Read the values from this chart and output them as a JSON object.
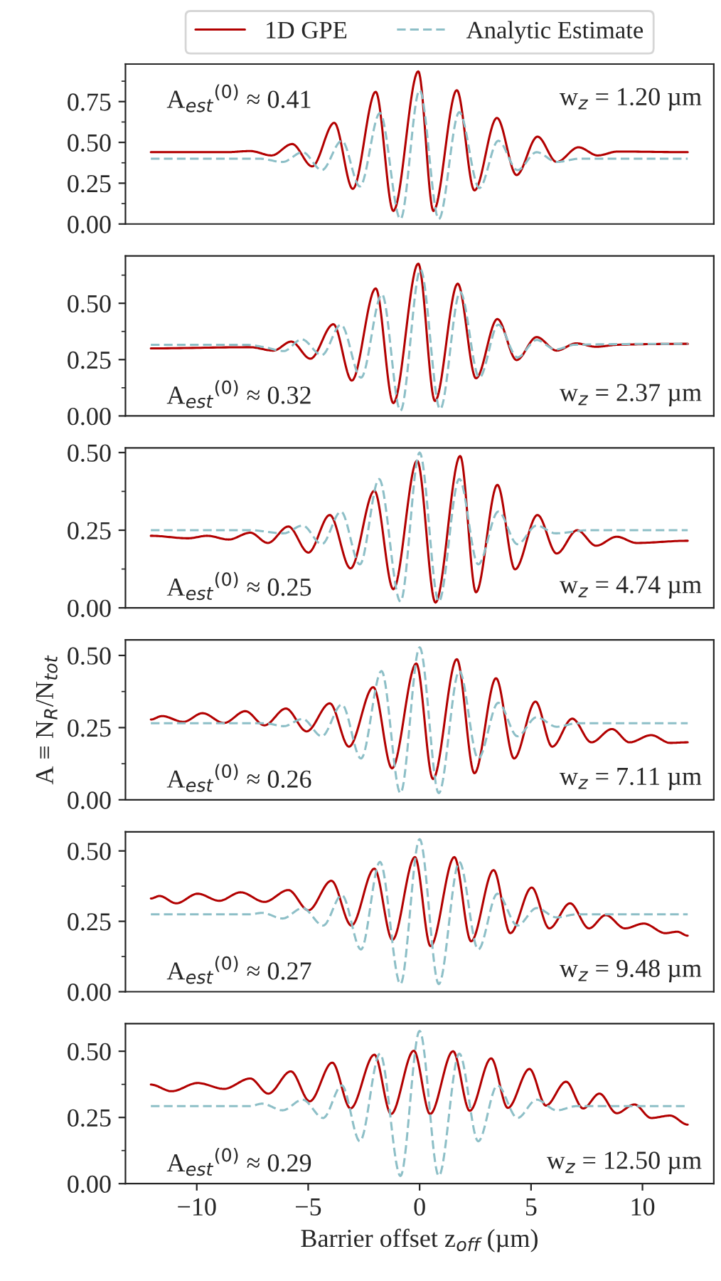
{
  "chart_data": [
    {
      "type": "line",
      "legend": "top",
      "tick_labels": "y",
      "xlim": [
        -13.2,
        13.2
      ],
      "xticks": [
        -10,
        -5,
        0,
        5,
        10
      ],
      "ylim": [
        0,
        0.98
      ],
      "yticks": [
        {
          "value": 0,
          "label": "0.00"
        },
        {
          "value": 0.25,
          "label": "0.25"
        },
        {
          "value": 0.5,
          "label": "0.50"
        },
        {
          "value": 0.75,
          "label": "0.75"
        }
      ],
      "annotations": [
        "A$_{est}$$^{(0)}$ ≈ 0.41",
        "w$_{z}$ = 1.20 µm"
      ],
      "series": [
        {
          "name": "1D GPE",
          "color": "#b20000",
          "line_style": "solid",
          "x": [
            -12.06,
            -8.67,
            -7.6,
            -6.64,
            -5.72,
            -4.82,
            -3.83,
            -3.0,
            -1.97,
            -1.18,
            -0.06,
            0.62,
            1.67,
            2.46,
            3.47,
            4.35,
            5.29,
            6.15,
            7.13,
            7.99,
            8.89,
            12.03
          ],
          "values": [
            0.44,
            0.44,
            0.447,
            0.42,
            0.49,
            0.353,
            0.62,
            0.215,
            0.81,
            0.08,
            0.935,
            0.08,
            0.82,
            0.206,
            0.65,
            0.3,
            0.535,
            0.38,
            0.47,
            0.42,
            0.444,
            0.44
          ]
        },
        {
          "name": "Analytic Estimate",
          "color": "#8dbfc7",
          "line_style": "dashed",
          "x": [
            -12.06,
            -7.17,
            -6.15,
            -5.25,
            -4.39,
            -3.49,
            -2.68,
            -1.78,
            -0.86,
            0,
            0.86,
            1.78,
            2.68,
            3.53,
            4.39,
            5.25,
            6.15,
            7.17,
            12.03
          ],
          "values": [
            0.4,
            0.4,
            0.38,
            0.44,
            0.33,
            0.51,
            0.23,
            0.68,
            0.03,
            0.82,
            0.03,
            0.685,
            0.22,
            0.51,
            0.33,
            0.44,
            0.38,
            0.4,
            0.4
          ]
        }
      ]
    },
    {
      "type": "line",
      "tick_labels": "y",
      "xlim": [
        -13.2,
        13.2
      ],
      "xticks": [
        -10,
        -5,
        0,
        5,
        10
      ],
      "ylim": [
        0,
        0.71
      ],
      "yticks": [
        {
          "value": 0,
          "label": "0.00"
        },
        {
          "value": 0.25,
          "label": "0.25"
        },
        {
          "value": 0.5,
          "label": "0.50"
        }
      ],
      "annotations": [
        "A$_{est}$$^{(0)}$ ≈ 0.32",
        "w$_{z}$ = 2.37 µm"
      ],
      "series": [
        {
          "color": "#b20000",
          "line_style": "solid",
          "x": [
            -12.06,
            -7.6,
            -6.56,
            -5.76,
            -4.9,
            -3.87,
            -3.04,
            -1.97,
            -1.18,
            -0.06,
            0.69,
            1.71,
            2.53,
            3.49,
            4.35,
            5.25,
            6.15,
            7.02,
            7.92,
            8.89,
            12.03
          ],
          "values": [
            0.3,
            0.305,
            0.29,
            0.33,
            0.254,
            0.407,
            0.157,
            0.566,
            0.057,
            0.676,
            0.066,
            0.587,
            0.167,
            0.43,
            0.248,
            0.35,
            0.29,
            0.322,
            0.307,
            0.316,
            0.32
          ]
        },
        {
          "color": "#8dbfc7",
          "line_style": "dashed",
          "x": [
            -12.06,
            -7.8,
            -6.96,
            -6.1,
            -5.29,
            -4.39,
            -3.53,
            -2.63,
            -1.69,
            -0.86,
            0.04,
            0.92,
            1.82,
            2.68,
            3.53,
            4.39,
            5.25,
            6.1,
            6.96,
            12.03
          ],
          "values": [
            0.316,
            0.316,
            0.305,
            0.288,
            0.34,
            0.27,
            0.405,
            0.17,
            0.54,
            0.023,
            0.65,
            0.03,
            0.55,
            0.17,
            0.405,
            0.26,
            0.337,
            0.295,
            0.316,
            0.32
          ]
        }
      ]
    },
    {
      "type": "line",
      "tick_labels": "y",
      "xlim": [
        -13.2,
        13.2
      ],
      "xticks": [
        -10,
        -5,
        0,
        5,
        10
      ],
      "ylim": [
        0,
        0.515
      ],
      "yticks": [
        {
          "value": 0,
          "label": "0.00"
        },
        {
          "value": 0.25,
          "label": "0.25"
        },
        {
          "value": 0.5,
          "label": "0.50"
        }
      ],
      "annotations": [
        "A$_{est}$$^{(0)}$ ≈ 0.25",
        "w$_{z}$ = 4.74 µm"
      ],
      "series": [
        {
          "color": "#b20000",
          "line_style": "solid",
          "x": [
            -12.06,
            -10.39,
            -9.53,
            -8.57,
            -7.6,
            -6.81,
            -5.89,
            -4.99,
            -4.03,
            -3.1,
            -2.03,
            -1.18,
            -0.11,
            0.71,
            1.82,
            2.53,
            3.49,
            4.28,
            5.29,
            6.15,
            7.07,
            7.92,
            8.84,
            9.74,
            12.03
          ],
          "values": [
            0.232,
            0.224,
            0.232,
            0.22,
            0.242,
            0.209,
            0.262,
            0.178,
            0.299,
            0.127,
            0.377,
            0.06,
            0.474,
            0.017,
            0.489,
            0.05,
            0.396,
            0.124,
            0.299,
            0.175,
            0.25,
            0.2,
            0.229,
            0.209,
            0.216
          ]
        },
        {
          "color": "#8dbfc7",
          "line_style": "dashed",
          "x": [
            -12.06,
            -7.6,
            -6.1,
            -5.25,
            -4.39,
            -3.53,
            -2.68,
            -1.82,
            -0.86,
            0,
            0.86,
            1.78,
            2.63,
            3.53,
            4.39,
            5.25,
            6.1,
            7.6,
            12.03
          ],
          "values": [
            0.25,
            0.25,
            0.24,
            0.265,
            0.205,
            0.31,
            0.14,
            0.415,
            0.02,
            0.5,
            0.02,
            0.415,
            0.14,
            0.31,
            0.205,
            0.265,
            0.24,
            0.25,
            0.25
          ]
        }
      ]
    },
    {
      "type": "line",
      "tick_labels": "y",
      "xlim": [
        -13.2,
        13.2
      ],
      "xticks": [
        -10,
        -5,
        0,
        5,
        10
      ],
      "ylim": [
        0,
        0.554
      ],
      "ylabel": "A ≡ N$_{R}$/N$_{tot}$",
      "yticks": [
        {
          "value": 0,
          "label": "0.00"
        },
        {
          "value": 0.25,
          "label": "0.25"
        },
        {
          "value": 0.5,
          "label": "0.50"
        }
      ],
      "annotations": [
        "A$_{est}$$^{(0)}$ ≈ 0.26",
        "w$_{z}$ = 7.11 µm"
      ],
      "series": [
        {
          "color": "#b20000",
          "line_style": "solid",
          "x": [
            -12.06,
            -11.56,
            -10.6,
            -9.74,
            -8.78,
            -7.82,
            -6.96,
            -6.0,
            -5.07,
            -4.03,
            -3.17,
            -2.08,
            -1.24,
            -0.15,
            0.6,
            1.67,
            2.46,
            3.43,
            4.24,
            5.2,
            5.95,
            6.85,
            7.71,
            8.63,
            9.42,
            10.39,
            11.24,
            12.03
          ],
          "values": [
            0.278,
            0.29,
            0.27,
            0.3,
            0.266,
            0.307,
            0.258,
            0.316,
            0.237,
            0.334,
            0.184,
            0.39,
            0.109,
            0.472,
            0.072,
            0.487,
            0.092,
            0.421,
            0.143,
            0.34,
            0.184,
            0.281,
            0.199,
            0.245,
            0.199,
            0.224,
            0.197,
            0.199
          ]
        },
        {
          "color": "#8dbfc7",
          "line_style": "dashed",
          "x": [
            -12.06,
            -6.96,
            -6.1,
            -5.25,
            -4.39,
            -3.49,
            -2.63,
            -1.71,
            -0.86,
            0,
            0.86,
            1.78,
            2.63,
            3.53,
            4.39,
            5.25,
            6.15,
            7.07,
            12.03
          ],
          "values": [
            0.265,
            0.265,
            0.255,
            0.28,
            0.22,
            0.33,
            0.143,
            0.446,
            0.023,
            0.528,
            0.023,
            0.446,
            0.143,
            0.336,
            0.22,
            0.286,
            0.253,
            0.265,
            0.265
          ]
        }
      ]
    },
    {
      "type": "line",
      "tick_labels": "y",
      "xlim": [
        -13.2,
        13.2
      ],
      "xticks": [
        -10,
        -5,
        0,
        5,
        10
      ],
      "ylim": [
        0,
        0.568
      ],
      "yticks": [
        {
          "value": 0,
          "label": "0.00"
        },
        {
          "value": 0.25,
          "label": "0.25"
        },
        {
          "value": 0.5,
          "label": "0.50"
        }
      ],
      "annotations": [
        "A$_{est}$$^{(0)}$ ≈ 0.27",
        "w$_{z}$ = 9.48 µm"
      ],
      "series": [
        {
          "color": "#b20000",
          "line_style": "solid",
          "x": [
            -12.06,
            -11.67,
            -10.92,
            -9.96,
            -8.99,
            -8.03,
            -6.96,
            -5.89,
            -4.99,
            -3.96,
            -3.06,
            -2.03,
            -1.22,
            -0.21,
            0.49,
            1.56,
            2.31,
            3.32,
            4.07,
            5.03,
            5.82,
            6.75,
            7.6,
            8.35,
            9.21,
            10.06,
            11.03,
            11.56,
            12.03
          ],
          "values": [
            0.331,
            0.34,
            0.314,
            0.348,
            0.323,
            0.353,
            0.319,
            0.361,
            0.289,
            0.394,
            0.235,
            0.437,
            0.184,
            0.478,
            0.162,
            0.478,
            0.179,
            0.432,
            0.208,
            0.37,
            0.225,
            0.314,
            0.225,
            0.272,
            0.225,
            0.242,
            0.208,
            0.213,
            0.199
          ]
        },
        {
          "color": "#8dbfc7",
          "line_style": "dashed",
          "x": [
            -12.06,
            -7.6,
            -7.07,
            -6.15,
            -5.25,
            -4.33,
            -3.49,
            -2.63,
            -1.78,
            -0.86,
            0,
            0.86,
            1.78,
            2.63,
            3.49,
            4.39,
            5.25,
            6.15,
            7.07,
            12.03
          ],
          "values": [
            0.275,
            0.275,
            0.28,
            0.26,
            0.297,
            0.235,
            0.343,
            0.15,
            0.461,
            0.027,
            0.542,
            0.027,
            0.461,
            0.15,
            0.348,
            0.235,
            0.297,
            0.264,
            0.275,
            0.275
          ]
        }
      ]
    },
    {
      "type": "line",
      "xlim": [
        -13.2,
        13.2
      ],
      "xticks": [
        {
          "value": -10,
          "label": "−10"
        },
        {
          "value": -5,
          "label": "−5"
        },
        0,
        5,
        10
      ],
      "ylim": [
        0,
        0.604
      ],
      "xlabel": "Barrier offset z$_{off}$ (µm)",
      "yticks": [
        {
          "value": 0,
          "label": "0.00"
        },
        {
          "value": 0.25,
          "label": "0.25"
        },
        {
          "value": 0.5,
          "label": "0.50"
        }
      ],
      "annotations": [
        "A$_{est}$$^{(0)}$ ≈ 0.29",
        "w$_{z}$ = 12.50 µm"
      ],
      "series": [
        {
          "color": "#b20000",
          "line_style": "solid",
          "x": [
            -12.06,
            -11.13,
            -9.96,
            -8.78,
            -7.6,
            -6.79,
            -5.78,
            -4.93,
            -3.92,
            -3.1,
            -2.03,
            -1.28,
            -0.26,
            0.47,
            1.5,
            2.25,
            3.21,
            3.96,
            4.93,
            5.67,
            6.57,
            7.34,
            8.07,
            8.84,
            9.64,
            10.39,
            11.24,
            12.03
          ],
          "values": [
            0.374,
            0.349,
            0.38,
            0.358,
            0.397,
            0.34,
            0.424,
            0.311,
            0.457,
            0.284,
            0.487,
            0.263,
            0.502,
            0.263,
            0.5,
            0.275,
            0.473,
            0.286,
            0.433,
            0.295,
            0.385,
            0.284,
            0.34,
            0.266,
            0.299,
            0.248,
            0.257,
            0.223
          ]
        },
        {
          "color": "#8dbfc7",
          "line_style": "dashed",
          "x": [
            -12.06,
            -7.6,
            -7.07,
            -6.15,
            -5.25,
            -4.33,
            -3.49,
            -2.68,
            -1.78,
            -0.86,
            0,
            0.86,
            1.78,
            2.63,
            3.49,
            4.39,
            5.25,
            6.15,
            7.07,
            12.03
          ],
          "values": [
            0.293,
            0.293,
            0.302,
            0.277,
            0.317,
            0.248,
            0.371,
            0.16,
            0.491,
            0.029,
            0.577,
            0.029,
            0.491,
            0.16,
            0.371,
            0.248,
            0.317,
            0.277,
            0.293,
            0.293
          ]
        }
      ]
    }
  ]
}
